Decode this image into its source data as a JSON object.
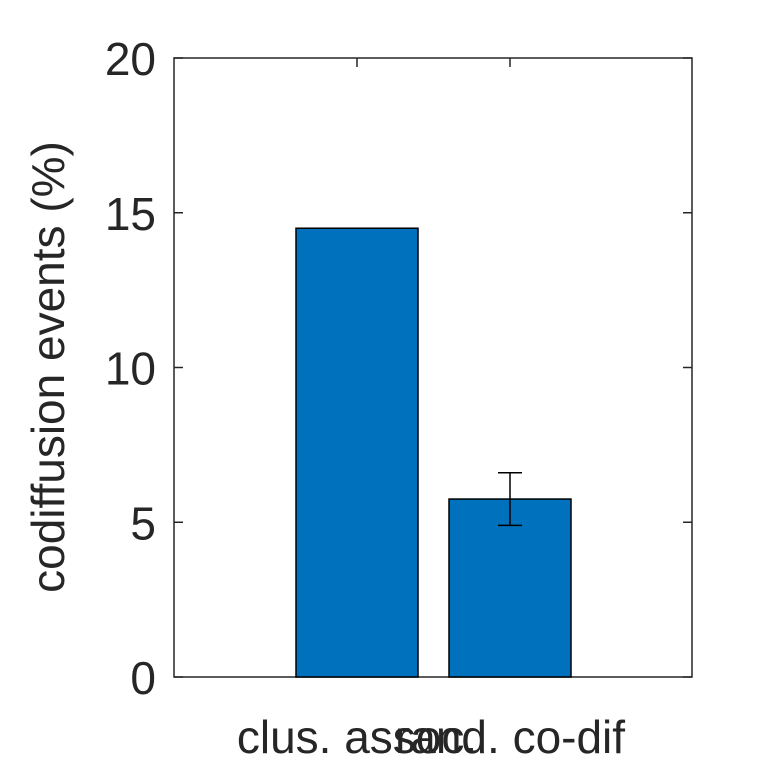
{
  "chart_data": {
    "type": "bar",
    "ylabel": "codiffusion events (%)",
    "categories": [
      "clus. assoc.",
      "rand. co-dif"
    ],
    "values": [
      14.5,
      5.75
    ],
    "error_bars": [
      null,
      {
        "low": 4.9,
        "high": 6.6
      }
    ],
    "ylim": [
      0,
      20
    ],
    "yticks": [
      0,
      5,
      10,
      15,
      20
    ],
    "colors": {
      "bar": "#0072BD",
      "axis": "#262626"
    },
    "grid": false
  }
}
